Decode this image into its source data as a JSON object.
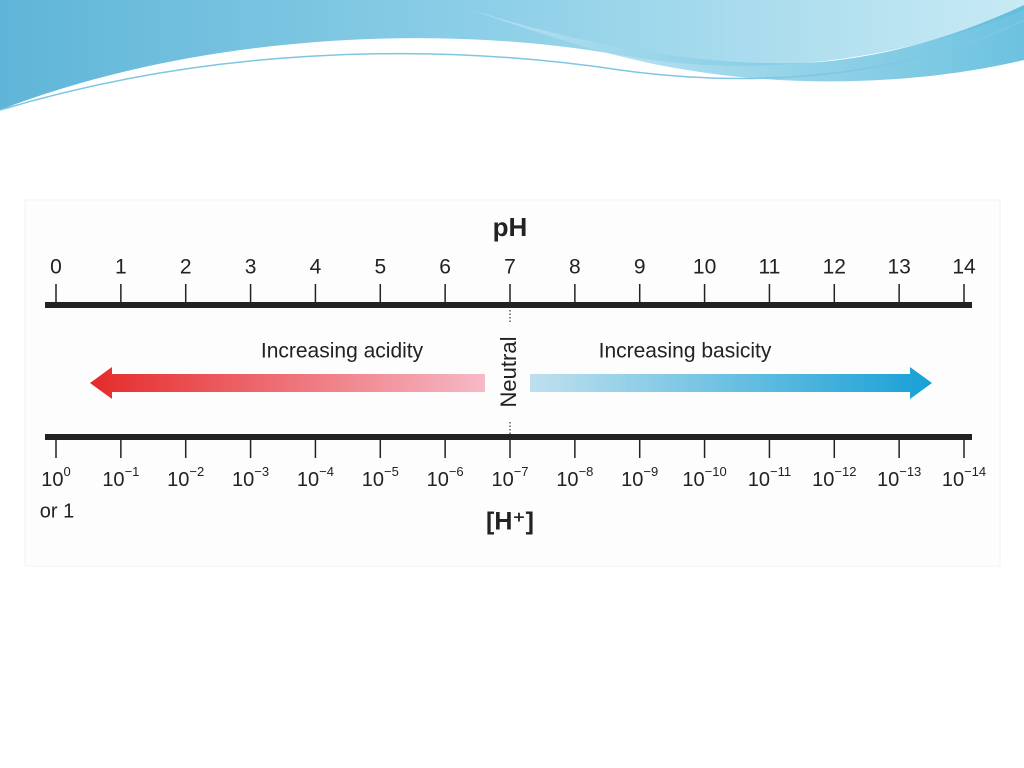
{
  "diagram": {
    "title": "pH",
    "ph_ticks": [
      0,
      1,
      2,
      3,
      4,
      5,
      6,
      7,
      8,
      9,
      10,
      11,
      12,
      13,
      14
    ],
    "h_labels": [
      {
        "base": "10",
        "exponent": "0"
      },
      {
        "base": "10",
        "exponent": "−1"
      },
      {
        "base": "10",
        "exponent": "−2"
      },
      {
        "base": "10",
        "exponent": "−3"
      },
      {
        "base": "10",
        "exponent": "−4"
      },
      {
        "base": "10",
        "exponent": "−5"
      },
      {
        "base": "10",
        "exponent": "−6"
      },
      {
        "base": "10",
        "exponent": "−7"
      },
      {
        "base": "10",
        "exponent": "−8"
      },
      {
        "base": "10",
        "exponent": "−9"
      },
      {
        "base": "10",
        "exponent": "−10"
      },
      {
        "base": "10",
        "exponent": "−11"
      },
      {
        "base": "10",
        "exponent": "−12"
      },
      {
        "base": "10",
        "exponent": "−13"
      },
      {
        "base": "10",
        "exponent": "−14"
      }
    ],
    "first_alt": "or 1",
    "bottom_title": "[H⁺]",
    "acid_label": "Increasing acidity",
    "base_label": "Increasing basicity",
    "neutral_label": "Neutral"
  }
}
